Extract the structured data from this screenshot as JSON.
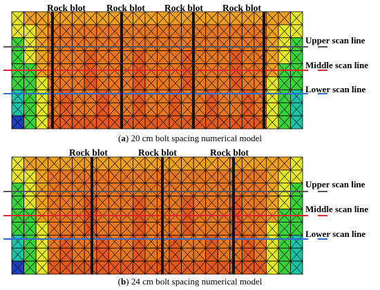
{
  "panels": [
    {
      "id": "a",
      "caption_letter": "a",
      "caption_text": "20 cm bolt spacing numerical model",
      "bolt_labels": [
        "Rock blot",
        "Rock blot",
        "Rock blot",
        "Rock blot"
      ],
      "scan_labels": [
        "Upper scan line",
        "Middle scan line",
        "Lower scan line"
      ]
    },
    {
      "id": "b",
      "caption_letter": "b",
      "caption_text": "24 cm bolt spacing numerical model",
      "bolt_labels": [
        "Rock blot",
        "Rock blot",
        "Rock blot"
      ],
      "scan_labels": [
        "Upper scan line",
        "Middle scan line",
        "Lower scan line"
      ]
    }
  ],
  "colors": {
    "mesh_line": "#000000",
    "bolt": "#111111",
    "upper_scan_line": "#555555",
    "middle_scan_line": "#e8232a",
    "lower_scan_line": "#2a6fd6",
    "contour_low": "#1e3fbf",
    "contour_cyan": "#19c4a8",
    "contour_green": "#3ad23a",
    "contour_yellow": "#e6e62a",
    "contour_orange": "#f0a020",
    "contour_dark_orange": "#e87820",
    "contour_red_orange": "#e25a1c"
  }
}
